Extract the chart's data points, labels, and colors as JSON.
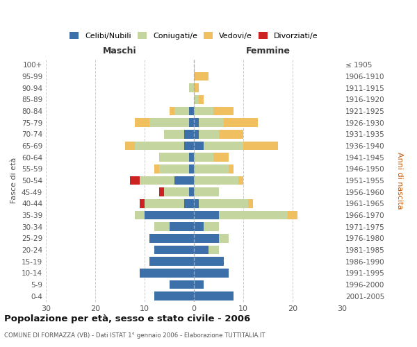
{
  "age_groups": [
    "100+",
    "95-99",
    "90-94",
    "85-89",
    "80-84",
    "75-79",
    "70-74",
    "65-69",
    "60-64",
    "55-59",
    "50-54",
    "45-49",
    "40-44",
    "35-39",
    "30-34",
    "25-29",
    "20-24",
    "15-19",
    "10-14",
    "5-9",
    "0-4"
  ],
  "birth_years": [
    "≤ 1905",
    "1906-1910",
    "1911-1915",
    "1916-1920",
    "1921-1925",
    "1926-1930",
    "1931-1935",
    "1936-1940",
    "1941-1945",
    "1946-1950",
    "1951-1955",
    "1956-1960",
    "1961-1965",
    "1966-1970",
    "1971-1975",
    "1976-1980",
    "1981-1985",
    "1986-1990",
    "1991-1995",
    "1996-2000",
    "2001-2005"
  ],
  "maschi_celibe": [
    0,
    0,
    0,
    0,
    1,
    1,
    2,
    2,
    1,
    1,
    4,
    1,
    2,
    10,
    5,
    9,
    8,
    9,
    11,
    5,
    8
  ],
  "maschi_coniugato": [
    0,
    0,
    1,
    0,
    3,
    8,
    4,
    10,
    6,
    6,
    7,
    5,
    8,
    2,
    3,
    0,
    0,
    0,
    0,
    0,
    0
  ],
  "maschi_vedovo": [
    0,
    0,
    0,
    0,
    1,
    3,
    0,
    2,
    0,
    1,
    0,
    0,
    0,
    0,
    0,
    0,
    0,
    0,
    0,
    0,
    0
  ],
  "maschi_divorziato": [
    0,
    0,
    0,
    0,
    0,
    0,
    0,
    0,
    0,
    0,
    2,
    1,
    1,
    0,
    0,
    0,
    0,
    0,
    0,
    0,
    0
  ],
  "femmine_celibe": [
    0,
    0,
    0,
    0,
    0,
    1,
    1,
    2,
    0,
    0,
    0,
    0,
    1,
    5,
    2,
    5,
    3,
    6,
    7,
    2,
    8
  ],
  "femmine_coniugata": [
    0,
    0,
    0,
    1,
    4,
    5,
    4,
    8,
    4,
    7,
    9,
    5,
    10,
    14,
    3,
    2,
    2,
    0,
    0,
    0,
    0
  ],
  "femmine_vedova": [
    0,
    3,
    1,
    1,
    4,
    7,
    5,
    7,
    3,
    1,
    1,
    0,
    1,
    2,
    0,
    0,
    0,
    0,
    0,
    0,
    0
  ],
  "femmine_divorziata": [
    0,
    0,
    0,
    0,
    0,
    0,
    0,
    0,
    0,
    0,
    0,
    0,
    0,
    0,
    0,
    0,
    0,
    0,
    0,
    0,
    0
  ],
  "colors": {
    "celibe": "#3d6fa8",
    "coniugato": "#c5d5a0",
    "vedovo": "#f0c060",
    "divorziato": "#cc2222"
  },
  "xlim": 30,
  "title": "Popolazione per età, sesso e stato civile - 2006",
  "subtitle": "COMUNE DI FORMAZZA (VB) - Dati ISTAT 1° gennaio 2006 - Elaborazione TUTTITALIA.IT",
  "ylabel_left": "Fasce di età",
  "ylabel_right": "Anni di nascita",
  "xlabel_maschi": "Maschi",
  "xlabel_femmine": "Femmine",
  "background_color": "#ffffff",
  "grid_color": "#cccccc"
}
